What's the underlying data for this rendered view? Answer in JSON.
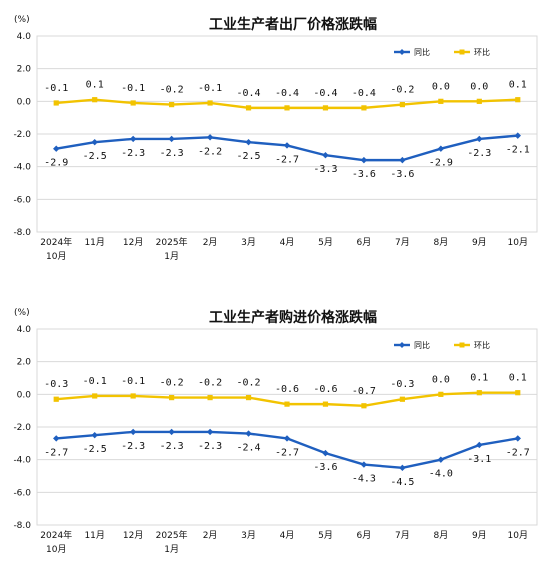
{
  "colors": {
    "yoy": "#1f5fbf",
    "mom": "#f2c300",
    "grid": "#d9d9d9",
    "axis": "#555555"
  },
  "chart_data": [
    {
      "type": "line",
      "title": "工业生产者出厂价格涨跌幅",
      "unit": "(%)",
      "ylim": [
        -8.0,
        4.0
      ],
      "yticks": [
        "4.0",
        "2.0",
        "0.0",
        "-2.0",
        "-4.0",
        "-6.0",
        "-8.0"
      ],
      "grid": true,
      "legend_position": "top-right",
      "categories": [
        [
          "2024年",
          "10月"
        ],
        [
          "11月"
        ],
        [
          "12月"
        ],
        [
          "2025年",
          "1月"
        ],
        [
          "2月"
        ],
        [
          "3月"
        ],
        [
          "4月"
        ],
        [
          "5月"
        ],
        [
          "6月"
        ],
        [
          "7月"
        ],
        [
          "8月"
        ],
        [
          "9月"
        ],
        [
          "10月"
        ]
      ],
      "series": [
        {
          "name": "同比",
          "values": [
            -2.9,
            -2.5,
            -2.3,
            -2.3,
            -2.2,
            -2.5,
            -2.7,
            -3.3,
            -3.6,
            -3.6,
            -2.9,
            -2.3,
            -2.1
          ],
          "labels": [
            "-2.9",
            "-2.5",
            "-2.3",
            "-2.3",
            "-2.2",
            "-2.5",
            "-2.7",
            "-3.3",
            "-3.6",
            "-3.6",
            "-2.9",
            "-2.3",
            "-2.1"
          ]
        },
        {
          "name": "环比",
          "values": [
            -0.1,
            0.1,
            -0.1,
            -0.2,
            -0.1,
            -0.4,
            -0.4,
            -0.4,
            -0.4,
            -0.2,
            0.0,
            0.0,
            0.1
          ],
          "labels": [
            "-0.1",
            "0.1",
            "-0.1",
            "-0.2",
            "-0.1",
            "-0.4",
            "-0.4",
            "-0.4",
            "-0.4",
            "-0.2",
            "0.0",
            "0.0",
            "0.1"
          ]
        }
      ]
    },
    {
      "type": "line",
      "title": "工业生产者购进价格涨跌幅",
      "unit": "(%)",
      "ylim": [
        -8.0,
        4.0
      ],
      "yticks": [
        "4.0",
        "2.0",
        "0.0",
        "-2.0",
        "-4.0",
        "-6.0",
        "-8.0"
      ],
      "grid": true,
      "legend_position": "top-right",
      "categories": [
        [
          "2024年",
          "10月"
        ],
        [
          "11月"
        ],
        [
          "12月"
        ],
        [
          "2025年",
          "1月"
        ],
        [
          "2月"
        ],
        [
          "3月"
        ],
        [
          "4月"
        ],
        [
          "5月"
        ],
        [
          "6月"
        ],
        [
          "7月"
        ],
        [
          "8月"
        ],
        [
          "9月"
        ],
        [
          "10月"
        ]
      ],
      "series": [
        {
          "name": "同比",
          "values": [
            -2.7,
            -2.5,
            -2.3,
            -2.3,
            -2.3,
            -2.4,
            -2.7,
            -3.6,
            -4.3,
            -4.5,
            -4.0,
            -3.1,
            -2.7
          ],
          "labels": [
            "-2.7",
            "-2.5",
            "-2.3",
            "-2.3",
            "-2.3",
            "-2.4",
            "-2.7",
            "-3.6",
            "-4.3",
            "-4.5",
            "-4.0",
            "-3.1",
            "-2.7"
          ]
        },
        {
          "name": "环比",
          "values": [
            -0.3,
            -0.1,
            -0.1,
            -0.2,
            -0.2,
            -0.2,
            -0.6,
            -0.6,
            -0.7,
            -0.3,
            0.0,
            0.1,
            0.1
          ],
          "labels": [
            "-0.3",
            "-0.1",
            "-0.1",
            "-0.2",
            "-0.2",
            "-0.2",
            "-0.6",
            "-0.6",
            "-0.7",
            "-0.3",
            "0.0",
            "0.1",
            "0.1"
          ]
        }
      ]
    }
  ]
}
